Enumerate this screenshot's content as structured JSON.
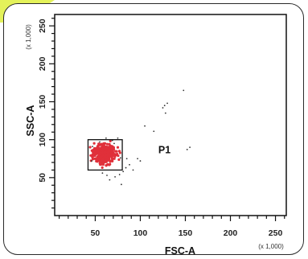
{
  "chart_data": {
    "type": "scatter",
    "title": "",
    "xlabel": "FSC-A",
    "ylabel": "SSC-A",
    "x_scale_note": "(x 1,000)",
    "y_scale_note": "(x 1,000)",
    "xlim": [
      5,
      262
    ],
    "ylim": [
      0,
      265
    ],
    "xticks": [
      50,
      100,
      150,
      200,
      250
    ],
    "yticks": [
      50,
      100,
      150,
      200,
      250
    ],
    "grid": false,
    "colors": {
      "population": "#e0303a",
      "debris": "#333333",
      "gate": "#111111",
      "accent": "#e4f25a"
    },
    "gates": [
      {
        "name": "P1",
        "x_range": [
          42,
          80
        ],
        "y_range": [
          60,
          100
        ]
      }
    ],
    "series": [
      {
        "role": "gated population",
        "center": [
          60,
          81
        ],
        "spread": [
          6,
          6
        ],
        "count": 340
      },
      {
        "role": "scattered events",
        "points": [
          [
            84,
            63
          ],
          [
            88,
            67
          ],
          [
            81,
            58
          ],
          [
            77,
            54
          ],
          [
            72,
            51
          ],
          [
            63,
            53
          ],
          [
            58,
            56
          ],
          [
            66,
            47
          ],
          [
            55,
            97
          ],
          [
            62,
            102
          ],
          [
            71,
            95
          ],
          [
            78,
            76
          ],
          [
            85,
            75
          ],
          [
            92,
            60
          ],
          [
            79,
            41
          ],
          [
            115,
            111
          ],
          [
            125,
            142
          ],
          [
            128,
            135
          ],
          [
            130,
            148
          ],
          [
            127,
            145
          ],
          [
            105,
            118
          ],
          [
            148,
            165
          ],
          [
            152,
            87
          ],
          [
            155,
            90
          ],
          [
            97,
            75
          ],
          [
            100,
            72
          ],
          [
            69,
            99
          ],
          [
            46,
            72
          ],
          [
            47,
            91
          ],
          [
            75,
            102
          ]
        ]
      }
    ]
  }
}
